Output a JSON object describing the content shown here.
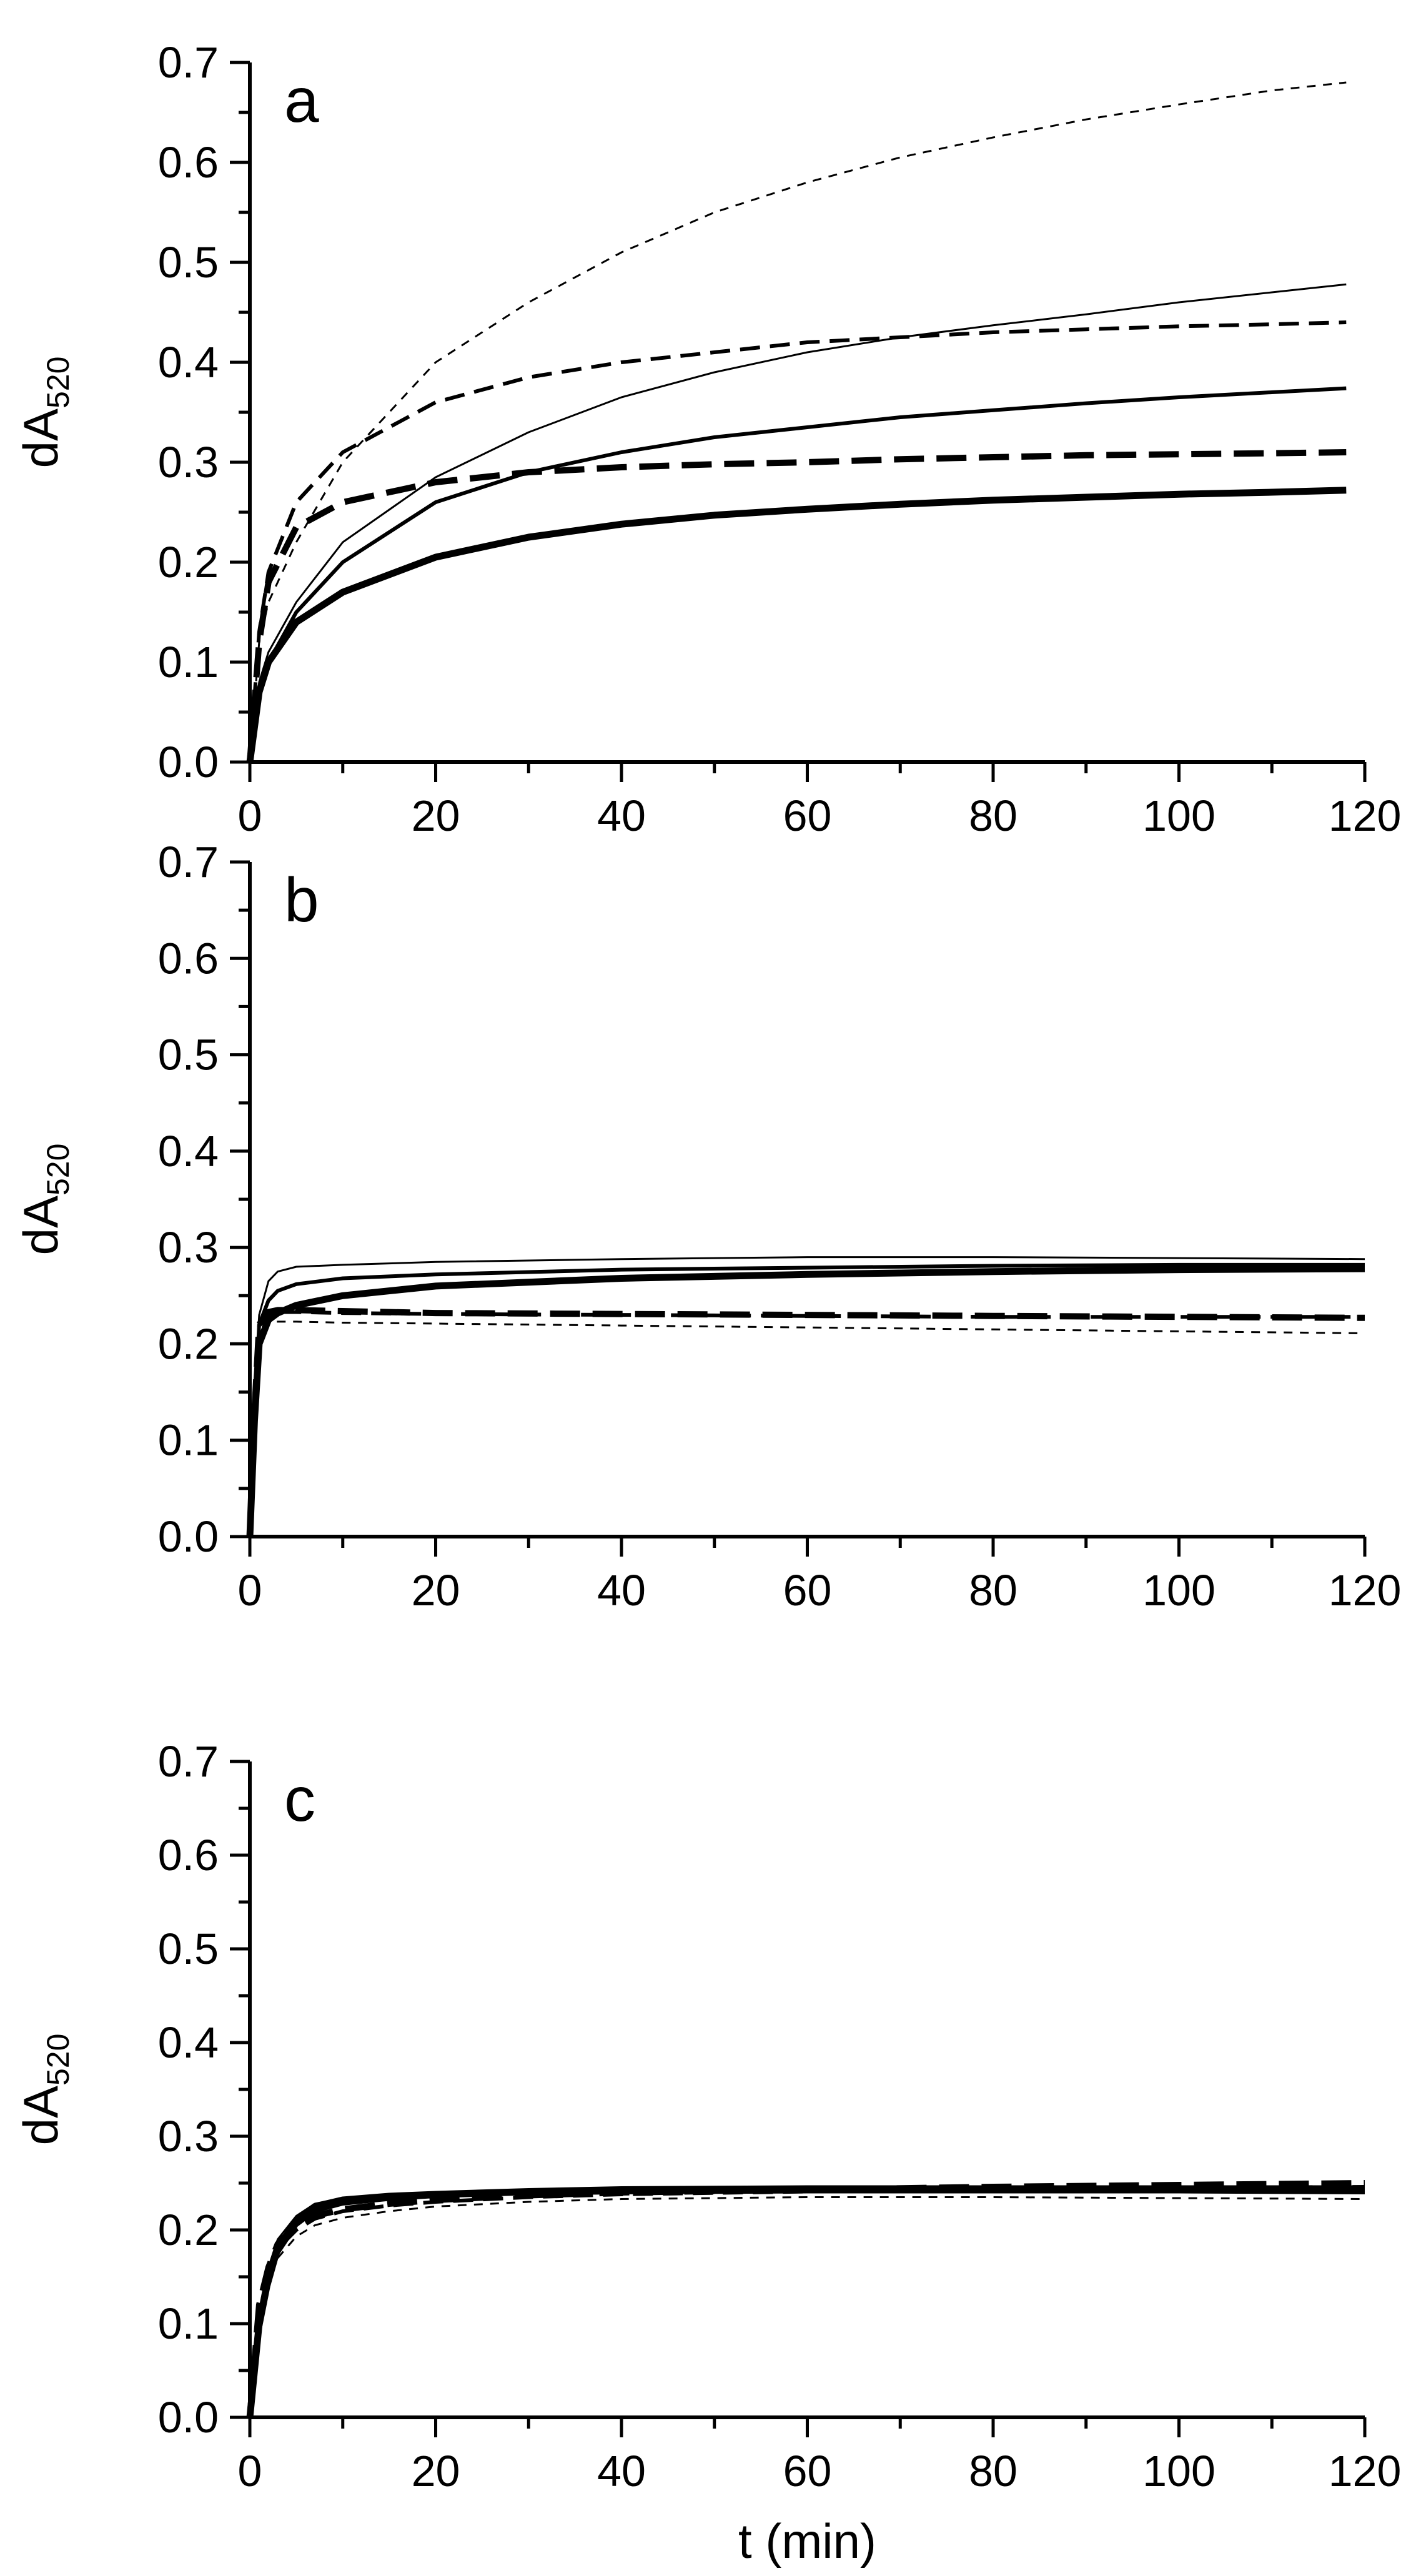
{
  "chart_data": [
    {
      "type": "line",
      "panel_label": "a",
      "ylabel": "dA",
      "ylabel_subscript": "520",
      "xlabel": "",
      "xlim": [
        0,
        120
      ],
      "ylim": [
        0,
        0.7
      ],
      "xticks": [
        "0",
        "20",
        "40",
        "60",
        "80",
        "100",
        "120"
      ],
      "yticks": [
        "0.0",
        "0.1",
        "0.2",
        "0.3",
        "0.4",
        "0.5",
        "0.6",
        "0.7"
      ],
      "grid": false,
      "series": [
        {
          "style": "thin-dashed",
          "x": [
            0,
            1,
            2,
            5,
            10,
            20,
            30,
            40,
            50,
            60,
            70,
            80,
            90,
            100,
            110,
            118
          ],
          "y": [
            0,
            0.12,
            0.16,
            0.22,
            0.3,
            0.4,
            0.46,
            0.51,
            0.55,
            0.58,
            0.605,
            0.625,
            0.643,
            0.658,
            0.672,
            0.68
          ]
        },
        {
          "style": "thin-solid",
          "x": [
            0,
            1,
            2,
            5,
            10,
            20,
            30,
            40,
            50,
            60,
            70,
            80,
            90,
            100,
            110,
            118
          ],
          "y": [
            0,
            0.08,
            0.11,
            0.16,
            0.22,
            0.285,
            0.33,
            0.365,
            0.39,
            0.41,
            0.425,
            0.437,
            0.448,
            0.46,
            0.47,
            0.478
          ]
        },
        {
          "style": "medium-dashed",
          "x": [
            0,
            1,
            2,
            5,
            10,
            20,
            30,
            40,
            50,
            60,
            70,
            80,
            90,
            100,
            110,
            118
          ],
          "y": [
            0,
            0.13,
            0.19,
            0.26,
            0.31,
            0.36,
            0.385,
            0.4,
            0.41,
            0.42,
            0.425,
            0.43,
            0.433,
            0.436,
            0.438,
            0.44
          ]
        },
        {
          "style": "medium-solid",
          "x": [
            0,
            1,
            2,
            5,
            10,
            20,
            30,
            40,
            50,
            60,
            70,
            80,
            90,
            100,
            110,
            118
          ],
          "y": [
            0,
            0.07,
            0.1,
            0.15,
            0.2,
            0.26,
            0.29,
            0.31,
            0.325,
            0.335,
            0.345,
            0.352,
            0.359,
            0.365,
            0.37,
            0.374
          ]
        },
        {
          "style": "thick-dashed",
          "x": [
            0,
            1,
            2,
            5,
            10,
            20,
            30,
            40,
            50,
            60,
            70,
            80,
            90,
            100,
            110,
            118
          ],
          "y": [
            0,
            0.12,
            0.18,
            0.235,
            0.26,
            0.28,
            0.29,
            0.295,
            0.298,
            0.3,
            0.303,
            0.305,
            0.307,
            0.308,
            0.309,
            0.31
          ]
        },
        {
          "style": "thick-solid",
          "x": [
            0,
            1,
            2,
            5,
            10,
            20,
            30,
            40,
            50,
            60,
            70,
            80,
            90,
            100,
            110,
            118
          ],
          "y": [
            0,
            0.07,
            0.1,
            0.14,
            0.17,
            0.205,
            0.225,
            0.238,
            0.247,
            0.253,
            0.258,
            0.262,
            0.265,
            0.268,
            0.27,
            0.272
          ]
        }
      ]
    },
    {
      "type": "line",
      "panel_label": "b",
      "ylabel": "dA",
      "ylabel_subscript": "520",
      "xlabel": "",
      "xlim": [
        0,
        120
      ],
      "ylim": [
        0,
        0.7
      ],
      "xticks": [
        "0",
        "20",
        "40",
        "60",
        "80",
        "100",
        "120"
      ],
      "yticks": [
        "0.0",
        "0.1",
        "0.2",
        "0.3",
        "0.4",
        "0.5",
        "0.6",
        "0.7"
      ],
      "grid": false,
      "series": [
        {
          "style": "thin-solid",
          "x": [
            0,
            0.5,
            1,
            2,
            3,
            5,
            10,
            20,
            40,
            60,
            80,
            100,
            120
          ],
          "y": [
            0,
            0.15,
            0.23,
            0.265,
            0.275,
            0.28,
            0.282,
            0.285,
            0.288,
            0.29,
            0.29,
            0.289,
            0.288
          ]
        },
        {
          "style": "medium-solid",
          "x": [
            0,
            0.5,
            1,
            2,
            3,
            5,
            10,
            20,
            40,
            60,
            80,
            100,
            120
          ],
          "y": [
            0,
            0.13,
            0.22,
            0.245,
            0.255,
            0.262,
            0.268,
            0.272,
            0.277,
            0.279,
            0.281,
            0.282,
            0.282
          ]
        },
        {
          "style": "thick-solid",
          "x": [
            0,
            0.5,
            1,
            2,
            3,
            5,
            10,
            20,
            40,
            60,
            80,
            100,
            120
          ],
          "y": [
            0,
            0.12,
            0.2,
            0.225,
            0.232,
            0.24,
            0.25,
            0.26,
            0.268,
            0.272,
            0.275,
            0.277,
            0.278
          ]
        },
        {
          "style": "thick-dashed",
          "x": [
            0,
            0.5,
            1,
            2,
            3,
            5,
            10,
            20,
            40,
            60,
            80,
            100,
            120
          ],
          "y": [
            0,
            0.13,
            0.22,
            0.233,
            0.235,
            0.235,
            0.234,
            0.232,
            0.231,
            0.23,
            0.229,
            0.228,
            0.227
          ]
        },
        {
          "style": "medium-dashed",
          "x": [
            0,
            0.5,
            1,
            2,
            3,
            5,
            10,
            20,
            40,
            60,
            80,
            100,
            120
          ],
          "y": [
            0,
            0.13,
            0.22,
            0.232,
            0.233,
            0.233,
            0.232,
            0.231,
            0.23,
            0.229,
            0.228,
            0.228,
            0.228
          ]
        },
        {
          "style": "thin-dashed",
          "x": [
            0,
            0.5,
            1,
            2,
            3,
            5,
            10,
            20,
            40,
            60,
            80,
            100,
            120
          ],
          "y": [
            0,
            0.12,
            0.215,
            0.222,
            0.223,
            0.223,
            0.222,
            0.221,
            0.219,
            0.217,
            0.215,
            0.213,
            0.211
          ]
        }
      ]
    },
    {
      "type": "line",
      "panel_label": "c",
      "ylabel": "dA",
      "ylabel_subscript": "520",
      "xlabel": "t (min)",
      "xlim": [
        0,
        120
      ],
      "ylim": [
        0,
        0.7
      ],
      "xticks": [
        "0",
        "20",
        "40",
        "60",
        "80",
        "100",
        "120"
      ],
      "yticks": [
        "0.0",
        "0.1",
        "0.2",
        "0.3",
        "0.4",
        "0.5",
        "0.6",
        "0.7"
      ],
      "grid": false,
      "series": [
        {
          "style": "thick-solid",
          "x": [
            0,
            1,
            2,
            3,
            5,
            7,
            10,
            15,
            20,
            30,
            40,
            60,
            80,
            100,
            120
          ],
          "y": [
            0,
            0.1,
            0.15,
            0.18,
            0.21,
            0.225,
            0.232,
            0.236,
            0.238,
            0.241,
            0.243,
            0.244,
            0.244,
            0.244,
            0.244
          ]
        },
        {
          "style": "medium-solid",
          "x": [
            0,
            1,
            2,
            3,
            5,
            7,
            10,
            15,
            20,
            30,
            40,
            60,
            80,
            100,
            120
          ],
          "y": [
            0,
            0.09,
            0.14,
            0.175,
            0.205,
            0.22,
            0.228,
            0.233,
            0.236,
            0.239,
            0.24,
            0.241,
            0.241,
            0.241,
            0.24
          ]
        },
        {
          "style": "thin-solid",
          "x": [
            0,
            1,
            2,
            3,
            5,
            7,
            10,
            15,
            20,
            30,
            40,
            60,
            80,
            100,
            120
          ],
          "y": [
            0,
            0.11,
            0.16,
            0.19,
            0.215,
            0.228,
            0.234,
            0.238,
            0.24,
            0.243,
            0.245,
            0.246,
            0.246,
            0.246,
            0.246
          ]
        },
        {
          "style": "thick-dashed",
          "x": [
            0,
            1,
            2,
            3,
            5,
            7,
            10,
            15,
            20,
            30,
            40,
            60,
            80,
            100,
            120
          ],
          "y": [
            0,
            0.12,
            0.16,
            0.185,
            0.205,
            0.215,
            0.222,
            0.228,
            0.232,
            0.237,
            0.24,
            0.243,
            0.246,
            0.248,
            0.25
          ]
        },
        {
          "style": "medium-dashed",
          "x": [
            0,
            1,
            2,
            3,
            5,
            7,
            10,
            15,
            20,
            30,
            40,
            60,
            80,
            100,
            120
          ],
          "y": [
            0,
            0.11,
            0.155,
            0.18,
            0.2,
            0.212,
            0.22,
            0.226,
            0.23,
            0.235,
            0.238,
            0.241,
            0.243,
            0.245,
            0.246
          ]
        },
        {
          "style": "thin-dashed",
          "x": [
            0,
            1,
            2,
            3,
            5,
            7,
            10,
            15,
            20,
            30,
            40,
            60,
            80,
            100,
            120
          ],
          "y": [
            0,
            0.1,
            0.145,
            0.17,
            0.193,
            0.205,
            0.213,
            0.22,
            0.225,
            0.23,
            0.233,
            0.235,
            0.235,
            0.234,
            0.233
          ]
        }
      ]
    }
  ]
}
